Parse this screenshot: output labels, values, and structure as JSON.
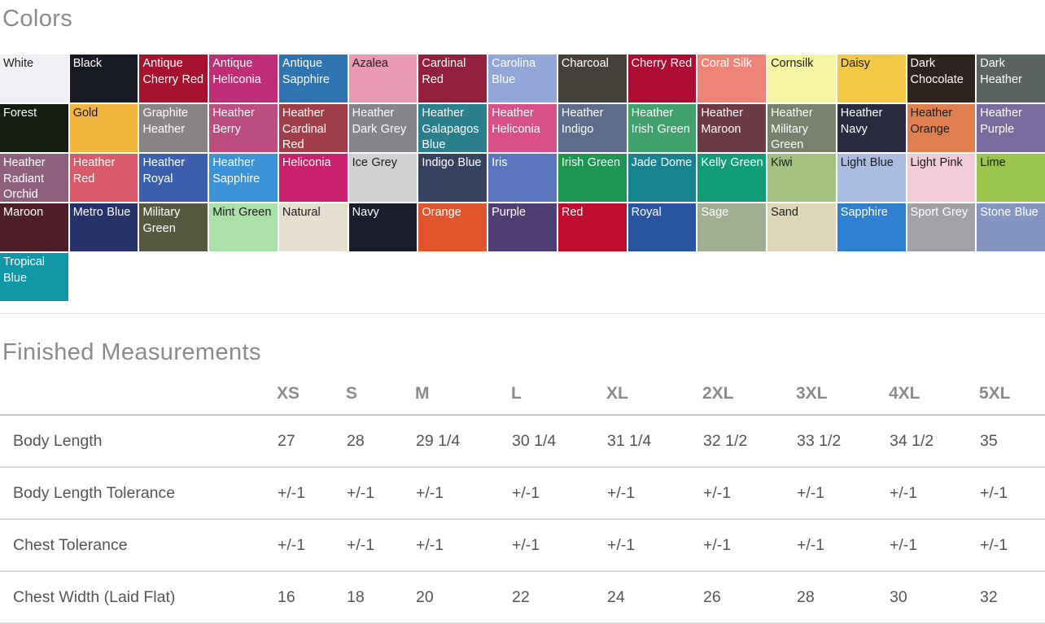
{
  "colors_section": {
    "title": "Colors",
    "label_dark": "#1c1c1c",
    "label_light": "#ffffff",
    "swatches": [
      {
        "name": "White",
        "bg": "#f2eff4",
        "text": "#1c1c1c"
      },
      {
        "name": "Black",
        "bg": "#191b24",
        "text": "#ffffff"
      },
      {
        "name": "Antique Cherry Red",
        "bg": "#a81231",
        "text": "#ffffff"
      },
      {
        "name": "Antique Heliconia",
        "bg": "#c02e79",
        "text": "#ffffff"
      },
      {
        "name": "Antique Sapphire",
        "bg": "#2d74b0",
        "text": "#ffffff"
      },
      {
        "name": "Azalea",
        "bg": "#e999b1",
        "text": "#1c1c1c"
      },
      {
        "name": "Cardinal Red",
        "bg": "#93203f",
        "text": "#ffffff"
      },
      {
        "name": "Carolina Blue",
        "bg": "#92a7d7",
        "text": "#ffffff"
      },
      {
        "name": "Charcoal",
        "bg": "#46413b",
        "text": "#ffffff"
      },
      {
        "name": "Cherry Red",
        "bg": "#ae0c33",
        "text": "#ffffff"
      },
      {
        "name": "Coral Silk",
        "bg": "#ee8478",
        "text": "#ffffff"
      },
      {
        "name": "Cornsilk",
        "bg": "#f6f5a3",
        "text": "#1c1c1c"
      },
      {
        "name": "Daisy",
        "bg": "#f3c845",
        "text": "#1c1c1c"
      },
      {
        "name": "Dark Chocolate",
        "bg": "#2f2320",
        "text": "#ffffff"
      },
      {
        "name": "Dark Heather",
        "bg": "#5b6360",
        "text": "#ffffff"
      },
      {
        "name": "Forest",
        "bg": "#161c10",
        "text": "#ffffff"
      },
      {
        "name": "Gold",
        "bg": "#f1b43c",
        "text": "#1c1c1c"
      },
      {
        "name": "Graphite Heather",
        "bg": "#8a8584",
        "text": "#ffffff"
      },
      {
        "name": "Heather Berry",
        "bg": "#bb4d81",
        "text": "#ffffff"
      },
      {
        "name": "Heather Cardinal Red",
        "bg": "#a03e49",
        "text": "#ffffff"
      },
      {
        "name": "Heather Dark Grey",
        "bg": "#85858a",
        "text": "#ffffff"
      },
      {
        "name": "Heather Galapagos Blue",
        "bg": "#2b7e8c",
        "text": "#ffffff"
      },
      {
        "name": "Heather Heliconia",
        "bg": "#d85087",
        "text": "#ffffff"
      },
      {
        "name": "Heather Indigo",
        "bg": "#5d6c8a",
        "text": "#ffffff"
      },
      {
        "name": "Heather Irish Green",
        "bg": "#41a16d",
        "text": "#ffffff"
      },
      {
        "name": "Heather Maroon",
        "bg": "#6c3a45",
        "text": "#ffffff"
      },
      {
        "name": "Heather Military Green",
        "bg": "#7a816d",
        "text": "#ffffff"
      },
      {
        "name": "Heather Navy",
        "bg": "#282c3e",
        "text": "#ffffff"
      },
      {
        "name": "Heather Orange",
        "bg": "#e08051",
        "text": "#1c1c1c"
      },
      {
        "name": "Heather Purple",
        "bg": "#786c9f",
        "text": "#ffffff"
      },
      {
        "name": "Heather Radiant Orchid",
        "bg": "#8f607e",
        "text": "#ffffff"
      },
      {
        "name": "Heather Red",
        "bg": "#d95a6a",
        "text": "#ffffff"
      },
      {
        "name": "Heather Royal",
        "bg": "#3c60ae",
        "text": "#ffffff"
      },
      {
        "name": "Heather Sapphire",
        "bg": "#3d93d7",
        "text": "#ffffff"
      },
      {
        "name": "Heliconia",
        "bg": "#cb206d",
        "text": "#ffffff"
      },
      {
        "name": "Ice Grey",
        "bg": "#d1d1d4",
        "text": "#1c1c1c"
      },
      {
        "name": "Indigo Blue",
        "bg": "#374260",
        "text": "#ffffff"
      },
      {
        "name": "Iris",
        "bg": "#5a75bd",
        "text": "#ffffff"
      },
      {
        "name": "Irish Green",
        "bg": "#1e9551",
        "text": "#ffffff"
      },
      {
        "name": "Jade Dome",
        "bg": "#17838f",
        "text": "#ffffff"
      },
      {
        "name": "Kelly Green",
        "bg": "#109c78",
        "text": "#ffffff"
      },
      {
        "name": "Kiwi",
        "bg": "#a5c17f",
        "text": "#1c1c1c"
      },
      {
        "name": "Light Blue",
        "bg": "#aabde0",
        "text": "#1c1c1c"
      },
      {
        "name": "Light Pink",
        "bg": "#f2cdd8",
        "text": "#1c1c1c"
      },
      {
        "name": "Lime",
        "bg": "#99c54d",
        "text": "#1c1c1c"
      },
      {
        "name": "Maroon",
        "bg": "#4f1f29",
        "text": "#ffffff"
      },
      {
        "name": "Metro Blue",
        "bg": "#27326b",
        "text": "#ffffff"
      },
      {
        "name": "Military Green",
        "bg": "#56583f",
        "text": "#ffffff"
      },
      {
        "name": "Mint Green",
        "bg": "#abe0a9",
        "text": "#1c1c1c"
      },
      {
        "name": "Natural",
        "bg": "#e5dfd1",
        "text": "#1c1c1c"
      },
      {
        "name": "Navy",
        "bg": "#1a1e2f",
        "text": "#ffffff"
      },
      {
        "name": "Orange",
        "bg": "#e1552c",
        "text": "#ffffff"
      },
      {
        "name": "Purple",
        "bg": "#4f3e73",
        "text": "#ffffff"
      },
      {
        "name": "Red",
        "bg": "#c20e2e",
        "text": "#ffffff"
      },
      {
        "name": "Royal",
        "bg": "#29549f",
        "text": "#ffffff"
      },
      {
        "name": "Sage",
        "bg": "#a0af92",
        "text": "#ffffff"
      },
      {
        "name": "Sand",
        "bg": "#ded6b9",
        "text": "#1c1c1c"
      },
      {
        "name": "Sapphire",
        "bg": "#3080d1",
        "text": "#ffffff"
      },
      {
        "name": "Sport Grey",
        "bg": "#a3a1a6",
        "text": "#ffffff"
      },
      {
        "name": "Stone Blue",
        "bg": "#8395c0",
        "text": "#ffffff"
      },
      {
        "name": "Tropical Blue",
        "bg": "#1097a6",
        "text": "#ffffff"
      }
    ]
  },
  "measurements_section": {
    "title": "Finished Measurements",
    "columns": [
      "XS",
      "S",
      "M",
      "L",
      "XL",
      "2XL",
      "3XL",
      "4XL",
      "5XL"
    ],
    "rows": [
      {
        "label": "Body Length",
        "values": [
          "27",
          "28",
          "29 1/4",
          "30 1/4",
          "31 1/4",
          "32 1/2",
          "33 1/2",
          "34 1/2",
          "35"
        ]
      },
      {
        "label": "Body Length Tolerance",
        "values": [
          "+/-1",
          "+/-1",
          "+/-1",
          "+/-1",
          "+/-1",
          "+/-1",
          "+/-1",
          "+/-1",
          "+/-1"
        ]
      },
      {
        "label": "Chest Tolerance",
        "values": [
          "+/-1",
          "+/-1",
          "+/-1",
          "+/-1",
          "+/-1",
          "+/-1",
          "+/-1",
          "+/-1",
          "+/-1"
        ]
      },
      {
        "label": "Chest Width (Laid Flat)",
        "values": [
          "16",
          "18",
          "20",
          "22",
          "24",
          "26",
          "28",
          "30",
          "32"
        ]
      }
    ]
  }
}
